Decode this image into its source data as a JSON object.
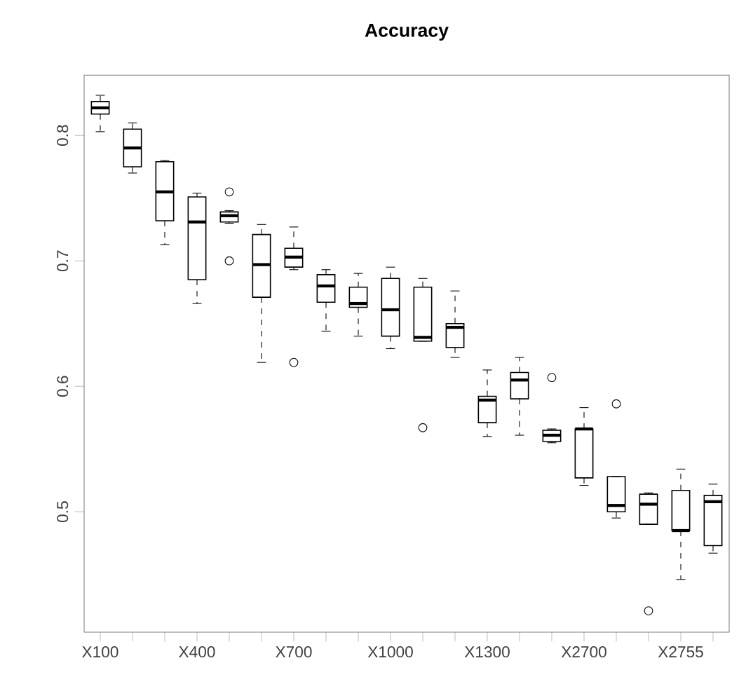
{
  "chart_data": {
    "type": "box",
    "title": "Accuracy",
    "categories": [
      "X100",
      null,
      null,
      "X400",
      null,
      null,
      "X700",
      null,
      null,
      "X1000",
      null,
      null,
      "X1300",
      null,
      null,
      "X2700",
      null,
      null,
      "X2755",
      null
    ],
    "ylim": [
      0.404,
      0.848
    ],
    "yticks": [
      0.5,
      0.6,
      0.7,
      0.8
    ],
    "color": "#000000",
    "boxes": [
      {
        "low": 0.803,
        "q1": 0.817,
        "median": 0.822,
        "q3": 0.827,
        "high": 0.832
      },
      {
        "low": 0.77,
        "q1": 0.775,
        "median": 0.79,
        "q3": 0.805,
        "high": 0.81
      },
      {
        "low": 0.713,
        "q1": 0.732,
        "median": 0.755,
        "q3": 0.779,
        "high": 0.78
      },
      {
        "low": 0.666,
        "q1": 0.685,
        "median": 0.731,
        "q3": 0.751,
        "high": 0.754
      },
      {
        "low": 0.73,
        "q1": 0.731,
        "median": 0.736,
        "q3": 0.739,
        "high": 0.74,
        "outliers": [
          0.755,
          0.7
        ]
      },
      {
        "low": 0.619,
        "q1": 0.671,
        "median": 0.697,
        "q3": 0.721,
        "high": 0.729
      },
      {
        "low": 0.693,
        "q1": 0.695,
        "median": 0.703,
        "q3": 0.71,
        "high": 0.727,
        "outliers": [
          0.619
        ]
      },
      {
        "low": 0.644,
        "q1": 0.667,
        "median": 0.68,
        "q3": 0.689,
        "high": 0.693
      },
      {
        "low": 0.64,
        "q1": 0.663,
        "median": 0.666,
        "q3": 0.679,
        "high": 0.69
      },
      {
        "low": 0.63,
        "q1": 0.64,
        "median": 0.661,
        "q3": 0.686,
        "high": 0.695
      },
      {
        "low": 0.636,
        "q1": 0.636,
        "median": 0.639,
        "q3": 0.679,
        "high": 0.686,
        "outliers": [
          0.567
        ]
      },
      {
        "low": 0.623,
        "q1": 0.631,
        "median": 0.647,
        "q3": 0.65,
        "high": 0.676
      },
      {
        "low": 0.56,
        "q1": 0.571,
        "median": 0.589,
        "q3": 0.592,
        "high": 0.613
      },
      {
        "low": 0.561,
        "q1": 0.59,
        "median": 0.605,
        "q3": 0.611,
        "high": 0.623
      },
      {
        "low": 0.555,
        "q1": 0.556,
        "median": 0.561,
        "q3": 0.565,
        "high": 0.566,
        "outliers": [
          0.607
        ]
      },
      {
        "low": 0.521,
        "q1": 0.527,
        "median": 0.566,
        "q3": 0.566,
        "high": 0.583
      },
      {
        "low": 0.495,
        "q1": 0.5,
        "median": 0.505,
        "q3": 0.528,
        "high": 0.528,
        "outliers": [
          0.586
        ]
      },
      {
        "low": 0.49,
        "q1": 0.49,
        "median": 0.506,
        "q3": 0.514,
        "high": 0.515,
        "outliers": [
          0.421
        ]
      },
      {
        "low": 0.446,
        "q1": 0.485,
        "median": 0.485,
        "q3": 0.517,
        "high": 0.534
      },
      {
        "low": 0.467,
        "q1": 0.473,
        "median": 0.508,
        "q3": 0.513,
        "high": 0.522
      }
    ]
  }
}
